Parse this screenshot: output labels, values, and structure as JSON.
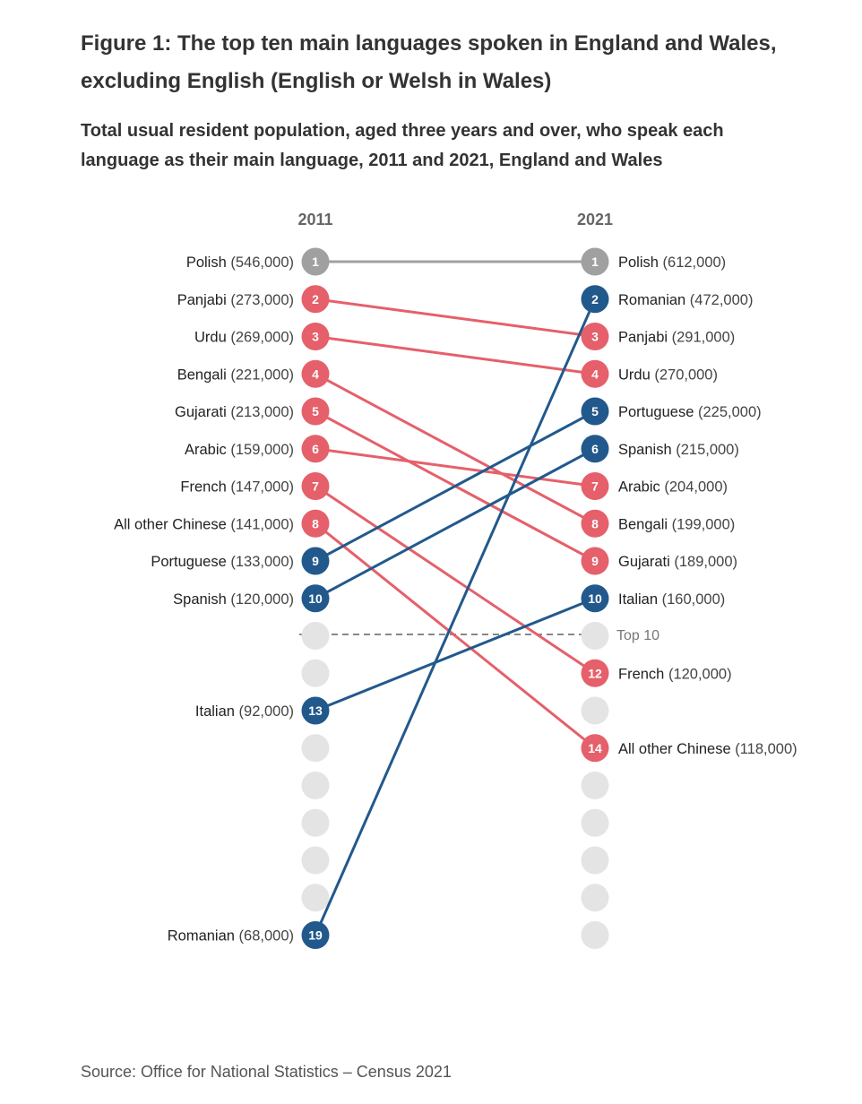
{
  "title": "Figure 1: The top ten main languages spoken in England and Wales, excluding English (English or Welsh in Wales)",
  "subtitle": "Total usual resident population, aged three years and over, who speak each language as their main language, 2011 and 2021, England and Wales",
  "source": "Source: Office for National Statistics – Census 2021",
  "colors": {
    "decline": "#e5606a",
    "rise": "#22598c",
    "same": "#a0a0a0",
    "empty": "#e4e4e4",
    "divider": "#888888"
  },
  "chart_data": {
    "type": "slope",
    "columns": [
      "2011",
      "2021"
    ],
    "cutoff_label": "Top 10",
    "max_rank": 19,
    "series": [
      {
        "language": "Polish",
        "rank_2011": 1,
        "value_2011": "546,000",
        "rank_2021": 1,
        "value_2021": "612,000",
        "trend": "same"
      },
      {
        "language": "Panjabi",
        "rank_2011": 2,
        "value_2011": "273,000",
        "rank_2021": 3,
        "value_2021": "291,000",
        "trend": "decline"
      },
      {
        "language": "Urdu",
        "rank_2011": 3,
        "value_2011": "269,000",
        "rank_2021": 4,
        "value_2021": "270,000",
        "trend": "decline"
      },
      {
        "language": "Bengali",
        "rank_2011": 4,
        "value_2011": "221,000",
        "rank_2021": 8,
        "value_2021": "199,000",
        "trend": "decline"
      },
      {
        "language": "Gujarati",
        "rank_2011": 5,
        "value_2011": "213,000",
        "rank_2021": 9,
        "value_2021": "189,000",
        "trend": "decline"
      },
      {
        "language": "Arabic",
        "rank_2011": 6,
        "value_2011": "159,000",
        "rank_2021": 7,
        "value_2021": "204,000",
        "trend": "decline"
      },
      {
        "language": "French",
        "rank_2011": 7,
        "value_2011": "147,000",
        "rank_2021": 12,
        "value_2021": "120,000",
        "trend": "decline"
      },
      {
        "language": "All other Chinese",
        "rank_2011": 8,
        "value_2011": "141,000",
        "rank_2021": 14,
        "value_2021": "118,000",
        "trend": "decline"
      },
      {
        "language": "Portuguese",
        "rank_2011": 9,
        "value_2011": "133,000",
        "rank_2021": 5,
        "value_2021": "225,000",
        "trend": "rise"
      },
      {
        "language": "Spanish",
        "rank_2011": 10,
        "value_2011": "120,000",
        "rank_2021": 6,
        "value_2021": "215,000",
        "trend": "rise"
      },
      {
        "language": "Italian",
        "rank_2011": 13,
        "value_2011": "92,000",
        "rank_2021": 10,
        "value_2021": "160,000",
        "trend": "rise"
      },
      {
        "language": "Romanian",
        "rank_2011": 19,
        "value_2011": "68,000",
        "rank_2021": 2,
        "value_2021": "472,000",
        "trend": "rise"
      }
    ]
  }
}
